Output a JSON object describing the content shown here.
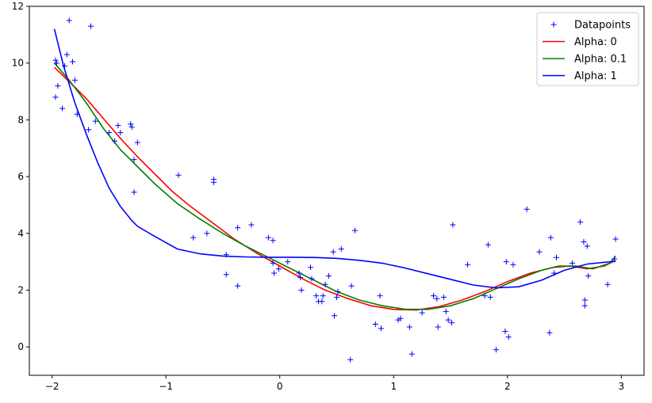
{
  "chart_data": {
    "type": "line",
    "title": "",
    "xlabel": "",
    "ylabel": "",
    "xlim": [
      -2.2,
      3.2
    ],
    "ylim": [
      -1.0,
      12.0
    ],
    "xticks": [
      -2,
      -1,
      0,
      1,
      2,
      3
    ],
    "xtick_labels": [
      "−2",
      "−1",
      "0",
      "1",
      "2",
      "3"
    ],
    "yticks": [
      0,
      2,
      4,
      6,
      8,
      10,
      12
    ],
    "ytick_labels": [
      "0",
      "2",
      "4",
      "6",
      "8",
      "10",
      "12"
    ],
    "grid": false,
    "legend_position": "top-right",
    "legend": [
      "Datapoints",
      "Alpha: 0",
      "Alpha: 0.1",
      "Alpha: 1"
    ],
    "scatter": {
      "name": "Datapoints",
      "color": "#0000ff",
      "marker": "plus",
      "points": [
        [
          -1.97,
          10.1
        ],
        [
          -1.96,
          10.0
        ],
        [
          -1.95,
          9.2
        ],
        [
          -1.97,
          8.8
        ],
        [
          -1.91,
          8.4
        ],
        [
          -1.89,
          9.9
        ],
        [
          -1.87,
          10.3
        ],
        [
          -1.85,
          11.5
        ],
        [
          -1.82,
          10.05
        ],
        [
          -1.8,
          9.4
        ],
        [
          -1.78,
          8.2
        ],
        [
          -1.68,
          7.65
        ],
        [
          -1.66,
          11.3
        ],
        [
          -1.62,
          7.95
        ],
        [
          -1.5,
          7.55
        ],
        [
          -1.45,
          7.25
        ],
        [
          -1.42,
          7.8
        ],
        [
          -1.4,
          7.55
        ],
        [
          -1.31,
          7.85
        ],
        [
          -1.3,
          7.75
        ],
        [
          -1.28,
          6.6
        ],
        [
          -1.28,
          5.45
        ],
        [
          -1.25,
          7.2
        ],
        [
          -0.89,
          6.05
        ],
        [
          -0.76,
          3.85
        ],
        [
          -0.64,
          4.0
        ],
        [
          -0.58,
          5.9
        ],
        [
          -0.58,
          5.8
        ],
        [
          -0.47,
          3.25
        ],
        [
          -0.47,
          2.55
        ],
        [
          -0.37,
          4.2
        ],
        [
          -0.37,
          2.15
        ],
        [
          -0.25,
          4.3
        ],
        [
          -0.1,
          3.85
        ],
        [
          -0.06,
          3.75
        ],
        [
          -0.06,
          2.95
        ],
        [
          -0.05,
          2.6
        ],
        [
          -0.01,
          2.75
        ],
        [
          0.07,
          3.0
        ],
        [
          0.17,
          2.6
        ],
        [
          0.18,
          2.45
        ],
        [
          0.19,
          2.0
        ],
        [
          0.27,
          2.8
        ],
        [
          0.28,
          2.4
        ],
        [
          0.32,
          1.8
        ],
        [
          0.34,
          1.6
        ],
        [
          0.37,
          1.6
        ],
        [
          0.38,
          1.8
        ],
        [
          0.4,
          2.2
        ],
        [
          0.43,
          2.5
        ],
        [
          0.47,
          3.35
        ],
        [
          0.48,
          1.1
        ],
        [
          0.5,
          1.75
        ],
        [
          0.51,
          1.95
        ],
        [
          0.54,
          3.45
        ],
        [
          0.63,
          2.15
        ],
        [
          0.62,
          -0.45
        ],
        [
          0.66,
          4.1
        ],
        [
          0.84,
          0.8
        ],
        [
          0.88,
          1.8
        ],
        [
          0.89,
          0.65
        ],
        [
          1.04,
          0.95
        ],
        [
          1.06,
          1.0
        ],
        [
          1.14,
          0.7
        ],
        [
          1.16,
          -0.25
        ],
        [
          1.25,
          1.2
        ],
        [
          1.35,
          1.8
        ],
        [
          1.38,
          1.7
        ],
        [
          1.39,
          0.7
        ],
        [
          1.44,
          1.75
        ],
        [
          1.46,
          1.25
        ],
        [
          1.48,
          0.95
        ],
        [
          1.51,
          0.85
        ],
        [
          1.52,
          4.3
        ],
        [
          1.65,
          2.9
        ],
        [
          1.8,
          1.8
        ],
        [
          1.83,
          3.6
        ],
        [
          1.85,
          1.75
        ],
        [
          1.9,
          -0.1
        ],
        [
          1.98,
          0.55
        ],
        [
          1.99,
          3.0
        ],
        [
          2.01,
          0.35
        ],
        [
          2.05,
          2.9
        ],
        [
          2.17,
          4.85
        ],
        [
          2.28,
          3.35
        ],
        [
          2.37,
          0.5
        ],
        [
          2.38,
          3.85
        ],
        [
          2.41,
          2.6
        ],
        [
          2.43,
          3.15
        ],
        [
          2.57,
          2.95
        ],
        [
          2.64,
          4.4
        ],
        [
          2.67,
          3.7
        ],
        [
          2.68,
          1.65
        ],
        [
          2.68,
          1.45
        ],
        [
          2.7,
          3.55
        ],
        [
          2.71,
          2.5
        ],
        [
          2.88,
          2.2
        ],
        [
          2.94,
          3.1
        ],
        [
          2.95,
          3.8
        ]
      ]
    },
    "series": [
      {
        "name": "Alpha: 0",
        "color": "#ff0000",
        "x": [
          -1.98,
          -1.85,
          -1.7,
          -1.55,
          -1.4,
          -1.25,
          -1.1,
          -0.95,
          -0.8,
          -0.6,
          -0.4,
          -0.2,
          0.0,
          0.2,
          0.4,
          0.6,
          0.8,
          1.0,
          1.2,
          1.4,
          1.6,
          1.8,
          2.0,
          2.2,
          2.4,
          2.55,
          2.7,
          2.85,
          2.95
        ],
        "values": [
          9.85,
          9.35,
          8.75,
          8.05,
          7.35,
          6.7,
          6.1,
          5.5,
          5.0,
          4.4,
          3.8,
          3.3,
          2.85,
          2.4,
          2.0,
          1.7,
          1.45,
          1.32,
          1.3,
          1.42,
          1.65,
          1.95,
          2.3,
          2.6,
          2.8,
          2.85,
          2.75,
          2.85,
          3.05
        ]
      },
      {
        "name": "Alpha: 0.1",
        "color": "#008000",
        "x": [
          -1.98,
          -1.85,
          -1.7,
          -1.55,
          -1.4,
          -1.25,
          -1.1,
          -0.9,
          -0.7,
          -0.5,
          -0.3,
          -0.1,
          0.1,
          0.3,
          0.5,
          0.7,
          0.9,
          1.1,
          1.3,
          1.5,
          1.7,
          1.9,
          2.1,
          2.3,
          2.45,
          2.6,
          2.75,
          2.9,
          2.95
        ],
        "values": [
          10.0,
          9.4,
          8.6,
          7.7,
          6.95,
          6.35,
          5.75,
          5.05,
          4.5,
          4.0,
          3.55,
          3.15,
          2.75,
          2.35,
          1.95,
          1.65,
          1.45,
          1.33,
          1.32,
          1.45,
          1.7,
          2.05,
          2.4,
          2.7,
          2.85,
          2.85,
          2.75,
          2.95,
          3.2
        ]
      },
      {
        "name": "Alpha: 1",
        "color": "#0000ff",
        "x": [
          -1.98,
          -1.9,
          -1.8,
          -1.7,
          -1.6,
          -1.5,
          -1.4,
          -1.3,
          -1.25,
          -1.1,
          -0.9,
          -0.7,
          -0.5,
          -0.3,
          -0.1,
          0.1,
          0.3,
          0.5,
          0.7,
          0.9,
          1.1,
          1.3,
          1.5,
          1.7,
          1.9,
          2.1,
          2.3,
          2.5,
          2.7,
          2.95
        ],
        "values": [
          11.2,
          9.9,
          8.6,
          7.5,
          6.5,
          5.6,
          4.95,
          4.45,
          4.25,
          3.9,
          3.45,
          3.28,
          3.2,
          3.17,
          3.16,
          3.16,
          3.15,
          3.12,
          3.05,
          2.95,
          2.78,
          2.58,
          2.38,
          2.18,
          2.08,
          2.12,
          2.35,
          2.7,
          2.92,
          3.02
        ]
      }
    ]
  }
}
